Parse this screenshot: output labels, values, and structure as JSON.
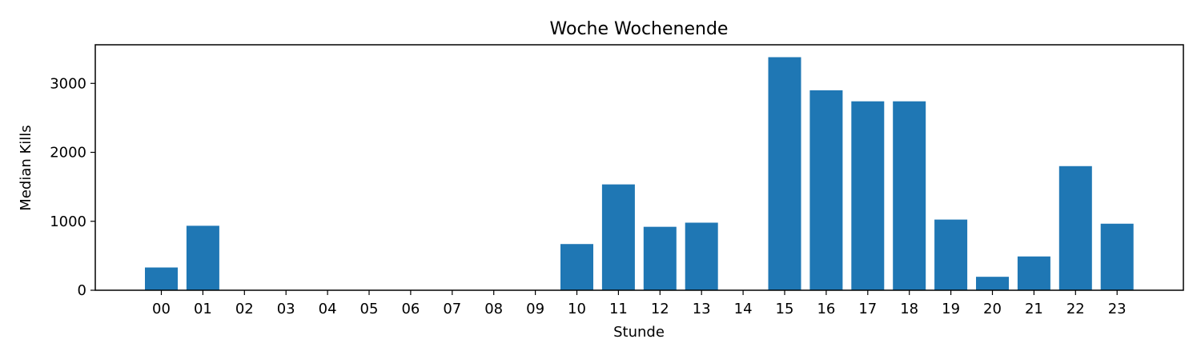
{
  "chart_data": {
    "type": "bar",
    "title": "Woche Wochenende",
    "xlabel": "Stunde",
    "ylabel": "Median Kills",
    "categories": [
      "00",
      "01",
      "02",
      "03",
      "04",
      "05",
      "06",
      "07",
      "08",
      "09",
      "10",
      "11",
      "12",
      "13",
      "14",
      "15",
      "16",
      "17",
      "18",
      "19",
      "20",
      "21",
      "22",
      "23"
    ],
    "values": [
      330,
      935,
      0,
      0,
      0,
      0,
      0,
      0,
      0,
      0,
      670,
      1535,
      920,
      980,
      0,
      3380,
      2900,
      2740,
      2740,
      1025,
      195,
      490,
      1800,
      965
    ],
    "ylim": [
      0,
      3560
    ],
    "yticks": [
      0,
      1000,
      2000,
      3000
    ],
    "grid": false,
    "bar_color": "#1f77b4"
  }
}
